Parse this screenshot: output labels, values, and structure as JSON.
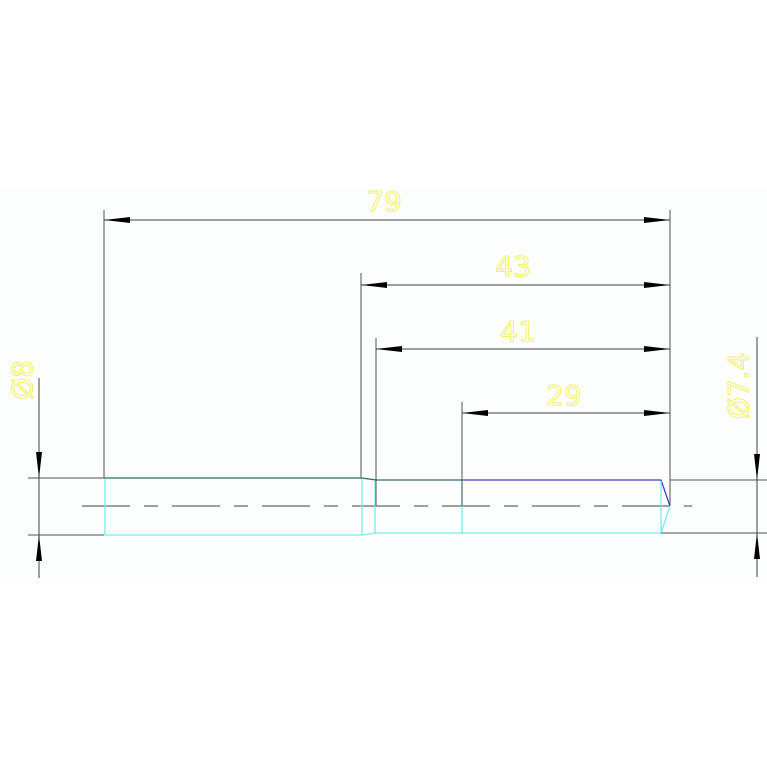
{
  "drawing": {
    "dimensions": {
      "overall_length": "79",
      "length_43": "43",
      "length_41": "41",
      "length_29": "29",
      "left_diameter": "Ø8",
      "right_diameter": "Ø7.4"
    },
    "colors": {
      "background": "#fbfefc",
      "dimension_text": "#f4f060",
      "dimension_lines": "#404040",
      "centerline": "#a0a0a0",
      "part_edge_top": "#2a6a6a",
      "part_edge_blue": "#4a3ad0",
      "part_edge_cyan": "#70f0f0"
    }
  }
}
